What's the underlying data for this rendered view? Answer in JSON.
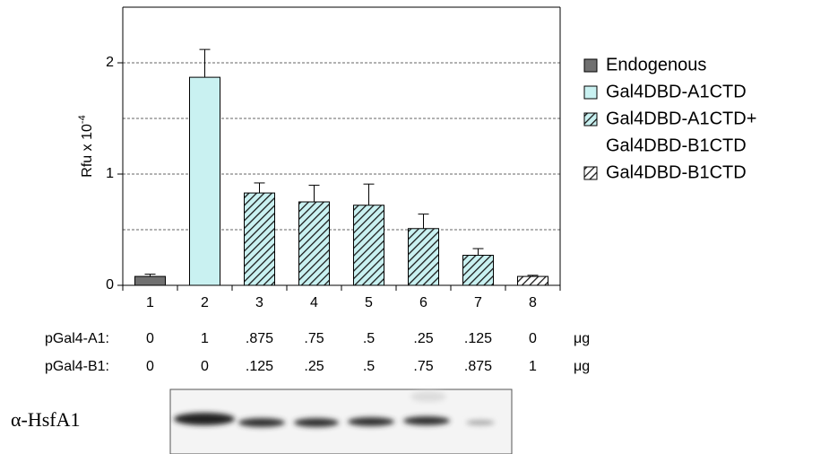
{
  "chart_data": {
    "type": "bar",
    "ylabel": "Rfu x 10",
    "ylabel_exponent": "-4",
    "categories": [
      "1",
      "2",
      "3",
      "4",
      "5",
      "6",
      "7",
      "8"
    ],
    "values": [
      0.08,
      1.87,
      0.83,
      0.75,
      0.72,
      0.51,
      0.27,
      0.08
    ],
    "errors": [
      0.02,
      0.25,
      0.09,
      0.15,
      0.19,
      0.13,
      0.06,
      0.01
    ],
    "bar_legend_index": [
      0,
      1,
      2,
      2,
      2,
      2,
      2,
      3
    ],
    "legend": [
      {
        "lines": [
          "Endogenous"
        ],
        "color": "#707070",
        "hatch": false
      },
      {
        "lines": [
          "Gal4DBD-A1CTD"
        ],
        "color": "#c9f1f1",
        "hatch": false
      },
      {
        "lines": [
          "Gal4DBD-A1CTD+",
          "Gal4DBD-B1CTD"
        ],
        "color": "#c9f1f1",
        "hatch": true
      },
      {
        "lines": [
          "Gal4DBD-B1CTD"
        ],
        "color": "#ffffff",
        "hatch": true
      }
    ],
    "ylim": [
      0,
      2.5
    ],
    "yticks": [
      0,
      1,
      2
    ],
    "grid_lines": [
      0.5,
      1,
      1.5,
      2
    ],
    "grid": true
  },
  "table": {
    "rows": [
      {
        "label": "pGal4-A1:",
        "cells": [
          "0",
          "1",
          ".875",
          ".75",
          ".5",
          ".25",
          ".125",
          "0"
        ],
        "unit": "μg"
      },
      {
        "label": "pGal4-B1:",
        "cells": [
          "0",
          "0",
          ".125",
          ".25",
          ".5",
          ".75",
          ".875",
          "1"
        ],
        "unit": "μg"
      }
    ]
  },
  "blot": {
    "label": "α-HsfA1"
  }
}
